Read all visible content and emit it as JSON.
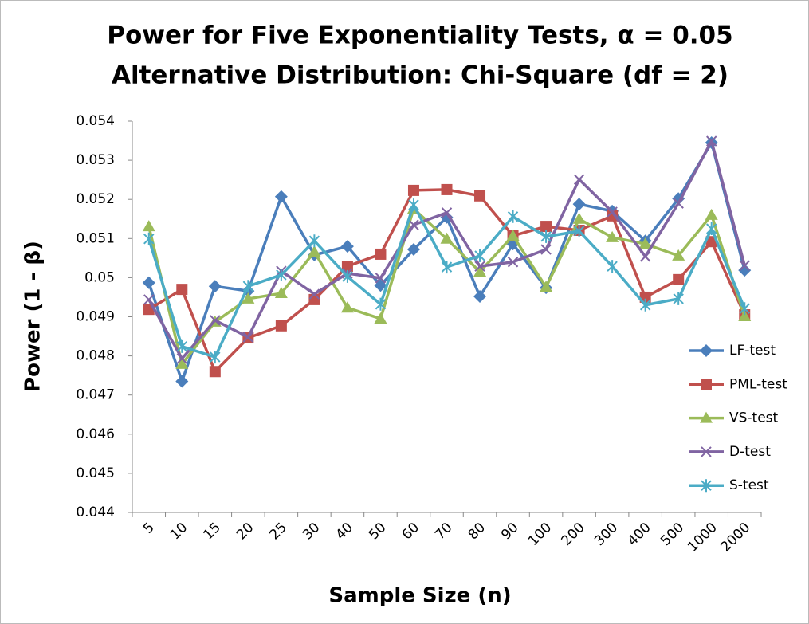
{
  "chart_data": {
    "type": "line",
    "title": "Power for Five Exponentiality Tests, α = 0.05",
    "subtitle": "Alternative Distribution: Chi-Square (df = 2)",
    "x_label": "Sample Size (n)",
    "y_label": "Power (1 - β)",
    "categories": [
      "5",
      "10",
      "15",
      "20",
      "25",
      "30",
      "40",
      "50",
      "60",
      "70",
      "80",
      "90",
      "100",
      "200",
      "300",
      "400",
      "500",
      "1000",
      "2000"
    ],
    "ylim": [
      0.044,
      0.054
    ],
    "yticks": [
      0.044,
      0.045,
      0.046,
      0.047,
      0.048,
      0.049,
      0.05,
      0.051,
      0.052,
      0.053,
      0.054
    ],
    "grid": false,
    "legend": "right",
    "series": [
      {
        "name": "LF-test",
        "color": "#4a7ebb",
        "marker": "diamond",
        "values": [
          0.04987,
          0.04735,
          0.04978,
          0.04966,
          0.05207,
          0.05058,
          0.0508,
          0.0498,
          0.05072,
          0.05154,
          0.04952,
          0.05086,
          0.04974,
          0.05188,
          0.0517,
          0.05094,
          0.05202,
          0.05345,
          0.05019
        ]
      },
      {
        "name": "PML-test",
        "color": "#c0504d",
        "marker": "square",
        "values": [
          0.04919,
          0.0497,
          0.0476,
          0.04846,
          0.04877,
          0.04944,
          0.05029,
          0.0506,
          0.05223,
          0.05225,
          0.05209,
          0.05107,
          0.05131,
          0.05121,
          0.05158,
          0.0495,
          0.04995,
          0.05092,
          0.04905
        ]
      },
      {
        "name": "VS-test",
        "color": "#9bbb59",
        "marker": "triangle",
        "values": [
          0.05131,
          0.04779,
          0.04887,
          0.04946,
          0.0496,
          0.05066,
          0.04923,
          0.04895,
          0.05176,
          0.05099,
          0.05015,
          0.05107,
          0.04976,
          0.0515,
          0.05103,
          0.05086,
          0.05056,
          0.0516,
          0.04901
        ]
      },
      {
        "name": "D-test",
        "color": "#8064a2",
        "marker": "x",
        "values": [
          0.04944,
          0.04793,
          0.04891,
          0.04848,
          0.05017,
          0.04958,
          0.05011,
          0.04999,
          0.05135,
          0.05166,
          0.05029,
          0.0504,
          0.05072,
          0.05251,
          0.05168,
          0.05054,
          0.0519,
          0.05349,
          0.05031
        ]
      },
      {
        "name": "S-test",
        "color": "#4bacc6",
        "marker": "asterisk",
        "values": [
          0.05099,
          0.04824,
          0.04797,
          0.04978,
          0.05007,
          0.05094,
          0.05003,
          0.04932,
          0.05186,
          0.05027,
          0.05056,
          0.05156,
          0.05105,
          0.05119,
          0.05029,
          0.0493,
          0.04946,
          0.05125,
          0.04921
        ]
      }
    ]
  }
}
